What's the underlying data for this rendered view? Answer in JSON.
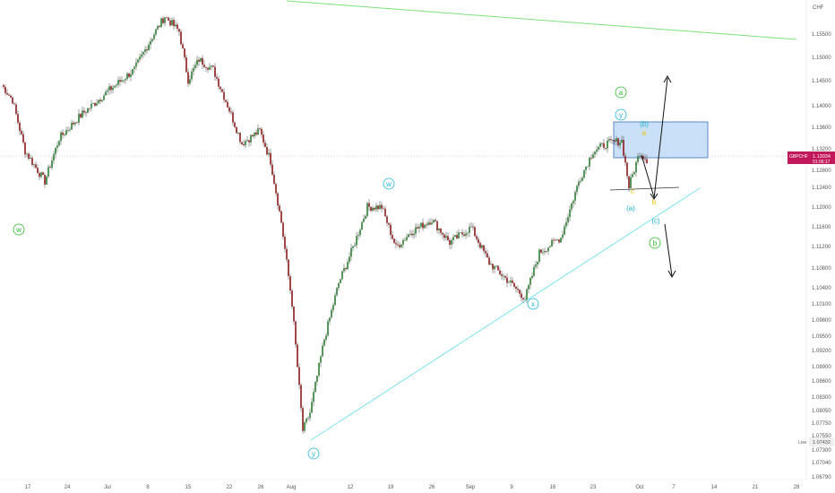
{
  "currency": "CHF",
  "symbol": "GBPCHF",
  "last_price": "1.13034",
  "countdown": "01:06:17",
  "low_label": "Low",
  "low_price": "1.07432",
  "colors": {
    "up": "#2e7d32",
    "down": "#8b1a1a",
    "wick": "#444444",
    "price_tag": "#c2185b",
    "cyan_line": "#7fe3f0",
    "green_line": "#7ee07e",
    "box_fill": "#bfdbf7",
    "box_border": "#3b6fb6",
    "wave_green": "#2eb82e",
    "wave_cyan": "#1fb4d8",
    "wave_yellow": "#f2c200"
  },
  "chart_data": {
    "type": "candlestick",
    "y_ticks": [
      "1.15500",
      "1.15000",
      "1.14500",
      "1.14000",
      "1.13600",
      "1.13200",
      "1.12800",
      "1.12400",
      "1.12000",
      "1.11600",
      "1.11200",
      "1.10800",
      "1.10400",
      "1.10100",
      "1.09800",
      "1.09500",
      "1.09200",
      "1.08900",
      "1.08600",
      "1.08300",
      "1.08050",
      "1.07750",
      "1.07550",
      "1.07300",
      "1.07040",
      "1.06790"
    ],
    "x_ticks": [
      "17",
      "24",
      "Jul",
      "8",
      "15",
      "22",
      "26",
      "Aug",
      "12",
      "19",
      "26",
      "Sep",
      "9",
      "16",
      "23",
      "Oct",
      "7",
      "14",
      "21",
      "28"
    ],
    "anchors": [
      {
        "t": 0,
        "p": 1.145
      },
      {
        "t": 6,
        "p": 1.142
      },
      {
        "t": 13,
        "p": 1.132
      },
      {
        "t": 24,
        "p": 1.126
      },
      {
        "t": 32,
        "p": 1.1345
      },
      {
        "t": 44,
        "p": 1.139
      },
      {
        "t": 60,
        "p": 1.144
      },
      {
        "t": 74,
        "p": 1.148
      },
      {
        "t": 84,
        "p": 1.1545
      },
      {
        "t": 91,
        "p": 1.1585
      },
      {
        "t": 99,
        "p": 1.1555
      },
      {
        "t": 104,
        "p": 1.146
      },
      {
        "t": 110,
        "p": 1.15
      },
      {
        "t": 118,
        "p": 1.148
      },
      {
        "t": 126,
        "p": 1.141
      },
      {
        "t": 134,
        "p": 1.1335
      },
      {
        "t": 144,
        "p": 1.136
      },
      {
        "t": 150,
        "p": 1.13
      },
      {
        "t": 156,
        "p": 1.118
      },
      {
        "t": 162,
        "p": 1.102
      },
      {
        "t": 168,
        "p": 1.077
      },
      {
        "t": 172,
        "p": 1.0805
      },
      {
        "t": 180,
        "p": 1.095
      },
      {
        "t": 188,
        "p": 1.106
      },
      {
        "t": 196,
        "p": 1.113
      },
      {
        "t": 204,
        "p": 1.121
      },
      {
        "t": 212,
        "p": 1.121
      },
      {
        "t": 220,
        "p": 1.113
      },
      {
        "t": 228,
        "p": 1.116
      },
      {
        "t": 240,
        "p": 1.1185
      },
      {
        "t": 250,
        "p": 1.114
      },
      {
        "t": 262,
        "p": 1.117
      },
      {
        "t": 272,
        "p": 1.11
      },
      {
        "t": 284,
        "p": 1.106
      },
      {
        "t": 292,
        "p": 1.103
      },
      {
        "t": 300,
        "p": 1.112
      },
      {
        "t": 312,
        "p": 1.115
      },
      {
        "t": 322,
        "p": 1.126
      },
      {
        "t": 330,
        "p": 1.132
      },
      {
        "t": 338,
        "p": 1.1335
      },
      {
        "t": 346,
        "p": 1.134
      },
      {
        "t": 350,
        "p": 1.125
      },
      {
        "t": 356,
        "p": 1.1318
      },
      {
        "t": 360,
        "p": 1.1303
      }
    ],
    "wave_labels": [
      {
        "text": "w",
        "style": "circle",
        "color": "wave_green"
      },
      {
        "text": "w",
        "style": "circle",
        "color": "wave_cyan"
      },
      {
        "text": "y",
        "style": "circle",
        "color": "wave_cyan"
      },
      {
        "text": "x",
        "style": "circle",
        "color": "wave_cyan"
      },
      {
        "text": "y",
        "style": "circle",
        "color": "wave_cyan"
      },
      {
        "text": "a",
        "style": "circle",
        "color": "wave_green"
      },
      {
        "text": "(b)",
        "style": "paren",
        "color": "wave_cyan"
      },
      {
        "text": "(a)",
        "style": "paren",
        "color": "wave_cyan"
      },
      {
        "text": "(c)",
        "style": "paren",
        "color": "wave_cyan"
      },
      {
        "text": "b",
        "style": "circle",
        "color": "wave_green"
      },
      {
        "text": "c",
        "style": "small",
        "color": "wave_yellow"
      },
      {
        "text": "a",
        "style": "small",
        "color": "wave_yellow"
      },
      {
        "text": "b",
        "style": "small",
        "color": "wave_yellow"
      }
    ]
  }
}
